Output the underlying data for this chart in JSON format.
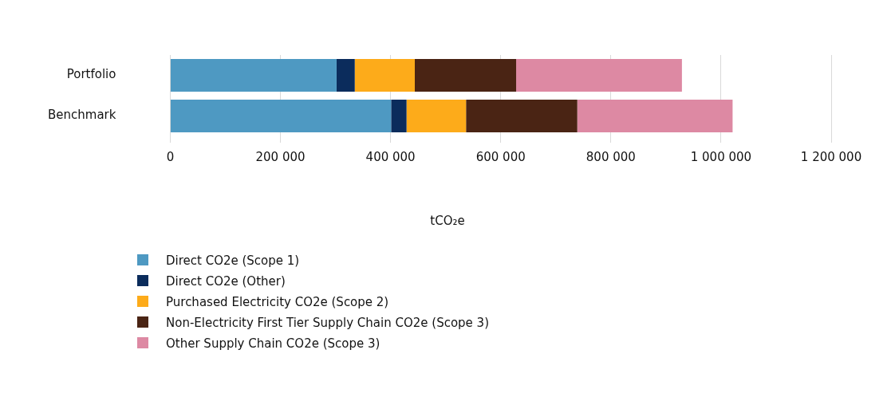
{
  "chart_data": {
    "type": "bar",
    "orientation": "horizontal",
    "stacked": true,
    "categories": [
      "Portfolio",
      "Benchmark"
    ],
    "series": [
      {
        "name": "Direct CO2e (Scope 1)",
        "color": "#4e99c2",
        "values": [
          302000,
          401000
        ]
      },
      {
        "name": "Direct CO2e (Other)",
        "color": "#0b2c5c",
        "values": [
          33000,
          28000
        ]
      },
      {
        "name": "Purchased Electricity CO2e (Scope 2)",
        "color": "#fdab1a",
        "values": [
          109000,
          108000
        ]
      },
      {
        "name": "Non-Electricity First Tier Supply Chain CO2e (Scope 3)",
        "color": "#4a2414",
        "values": [
          184000,
          202000
        ]
      },
      {
        "name": "Other Supply Chain CO2e (Scope 3)",
        "color": "#dd89a3",
        "values": [
          301000,
          282000
        ]
      }
    ],
    "xlabel": "tCO₂e",
    "xlim": [
      0,
      1200000
    ],
    "xticks": [
      {
        "value": 0,
        "label": "0"
      },
      {
        "value": 200000,
        "label": "200 000"
      },
      {
        "value": 400000,
        "label": "400 000"
      },
      {
        "value": 600000,
        "label": "600 000"
      },
      {
        "value": 800000,
        "label": "800 000"
      },
      {
        "value": 1000000,
        "label": "1 000 000"
      },
      {
        "value": 1200000,
        "label": "1 200 000"
      }
    ],
    "grid": "x",
    "legend": "bottom left"
  }
}
